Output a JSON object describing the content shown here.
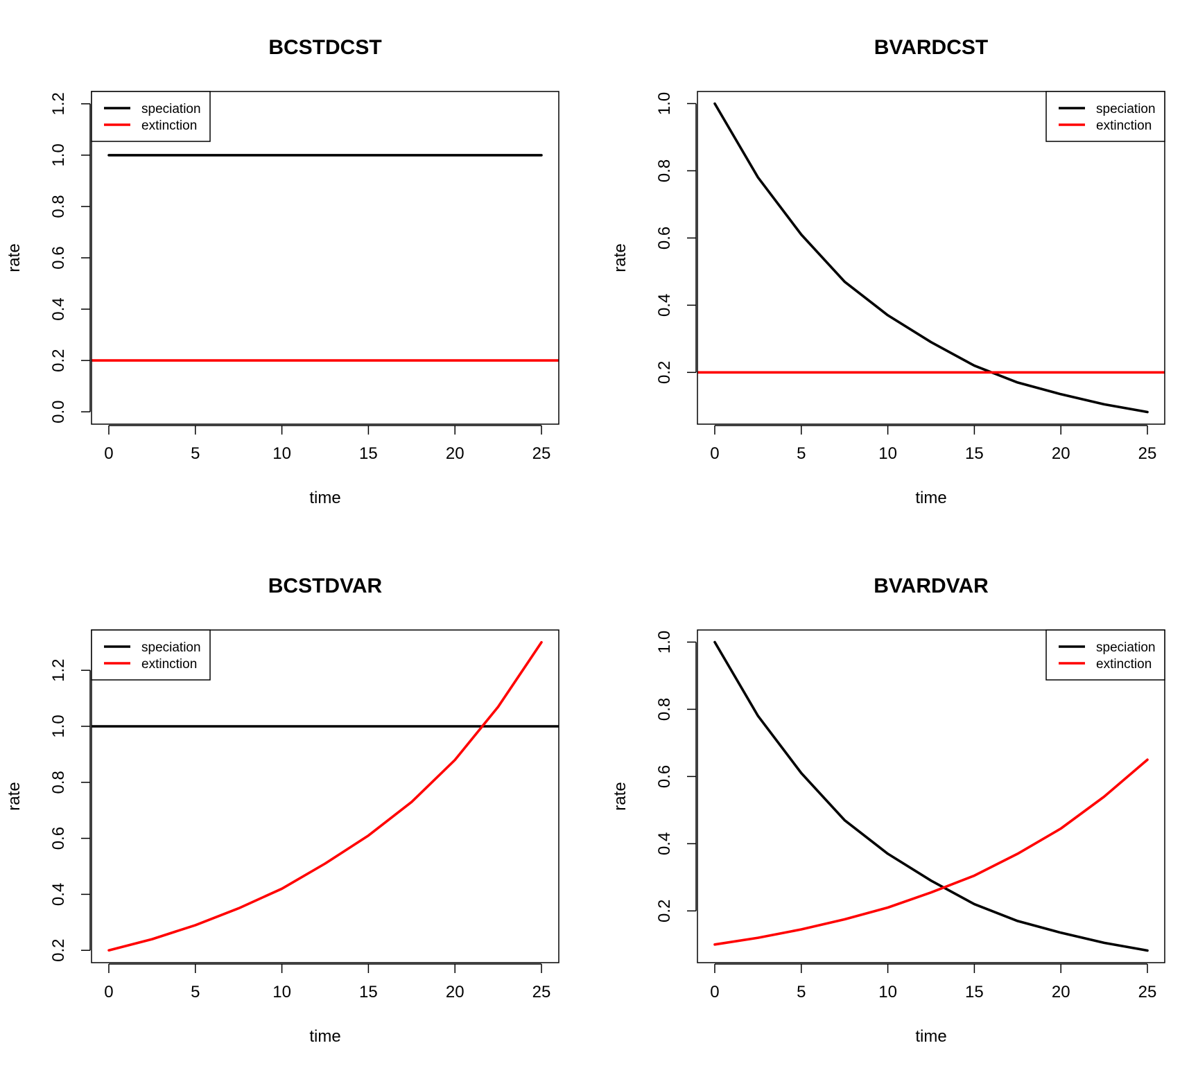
{
  "chart_data": [
    {
      "type": "line",
      "title": "BCSTDCST",
      "xlabel": "time",
      "ylabel": "rate",
      "xlim": [
        -1,
        26
      ],
      "ylim": [
        -0.048,
        1.248
      ],
      "xticks": [
        "0",
        "5",
        "10",
        "15",
        "20",
        "25"
      ],
      "yticks": [
        "0.0",
        "0.2",
        "0.4",
        "0.6",
        "0.8",
        "1.0",
        "1.2"
      ],
      "legend_position": "top-left",
      "series": [
        {
          "name": "speciation",
          "color": "#000000",
          "x": [
            0,
            25
          ],
          "y": [
            1.0,
            1.0
          ]
        },
        {
          "name": "extinction",
          "color": "#ff0000",
          "x": [
            -1,
            26
          ],
          "y": [
            0.2,
            0.2
          ]
        }
      ]
    },
    {
      "type": "line",
      "title": "BVARDCST",
      "xlabel": "time",
      "ylabel": "rate",
      "xlim": [
        -1,
        26
      ],
      "ylim": [
        0.046,
        1.036
      ],
      "xticks": [
        "0",
        "5",
        "10",
        "15",
        "20",
        "25"
      ],
      "yticks": [
        "0.2",
        "0.4",
        "0.6",
        "0.8",
        "1.0"
      ],
      "legend_position": "top-right",
      "series": [
        {
          "name": "speciation",
          "color": "#000000",
          "x": [
            0,
            2.5,
            5,
            7.5,
            10,
            12.5,
            15,
            17.5,
            20,
            22.5,
            25
          ],
          "y": [
            1.0,
            0.78,
            0.61,
            0.47,
            0.37,
            0.29,
            0.22,
            0.17,
            0.135,
            0.105,
            0.082
          ]
        },
        {
          "name": "extinction",
          "color": "#ff0000",
          "x": [
            -1,
            26
          ],
          "y": [
            0.2,
            0.2
          ]
        }
      ]
    },
    {
      "type": "line",
      "title": "BCSTDVAR",
      "xlabel": "time",
      "ylabel": "rate",
      "xlim": [
        -1,
        26
      ],
      "ylim": [
        0.156,
        1.344
      ],
      "xticks": [
        "0",
        "5",
        "10",
        "15",
        "20",
        "25"
      ],
      "yticks": [
        "0.2",
        "0.4",
        "0.6",
        "0.8",
        "1.0",
        "1.2"
      ],
      "legend_position": "top-left",
      "series": [
        {
          "name": "speciation",
          "color": "#000000",
          "x": [
            -1,
            26
          ],
          "y": [
            1.0,
            1.0
          ]
        },
        {
          "name": "extinction",
          "color": "#ff0000",
          "x": [
            0,
            2.5,
            5,
            7.5,
            10,
            12.5,
            15,
            17.5,
            20,
            22.5,
            25
          ],
          "y": [
            0.2,
            0.24,
            0.29,
            0.35,
            0.42,
            0.51,
            0.61,
            0.73,
            0.88,
            1.07,
            1.3
          ]
        }
      ]
    },
    {
      "type": "line",
      "title": "BVARDVAR",
      "xlabel": "time",
      "ylabel": "rate",
      "xlim": [
        -1,
        26
      ],
      "ylim": [
        0.046,
        1.036
      ],
      "xticks": [
        "0",
        "5",
        "10",
        "15",
        "20",
        "25"
      ],
      "yticks": [
        "0.2",
        "0.4",
        "0.6",
        "0.8",
        "1.0"
      ],
      "legend_position": "top-right",
      "series": [
        {
          "name": "speciation",
          "color": "#000000",
          "x": [
            0,
            2.5,
            5,
            7.5,
            10,
            12.5,
            15,
            17.5,
            20,
            22.5,
            25
          ],
          "y": [
            1.0,
            0.78,
            0.61,
            0.47,
            0.37,
            0.29,
            0.22,
            0.17,
            0.135,
            0.105,
            0.082
          ]
        },
        {
          "name": "extinction",
          "color": "#ff0000",
          "x": [
            0,
            2.5,
            5,
            7.5,
            10,
            12.5,
            15,
            17.5,
            20,
            22.5,
            25
          ],
          "y": [
            0.1,
            0.12,
            0.145,
            0.175,
            0.21,
            0.255,
            0.305,
            0.37,
            0.445,
            0.54,
            0.65
          ]
        }
      ]
    }
  ]
}
